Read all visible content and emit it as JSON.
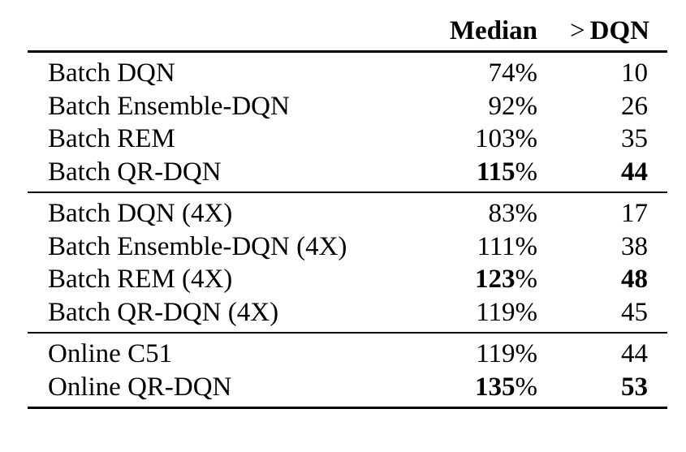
{
  "table": {
    "headers": {
      "method": "",
      "median": "Median",
      "dqn_symbol": ">",
      "dqn_label": "DQN"
    },
    "groups": [
      [
        {
          "method": "Batch DQN",
          "median_num": "74",
          "median_pct": "%",
          "dqn": "10",
          "bold": false
        },
        {
          "method": "Batch Ensemble-DQN",
          "median_num": "92",
          "median_pct": "%",
          "dqn": "26",
          "bold": false
        },
        {
          "method": "Batch REM",
          "median_num": "103",
          "median_pct": "%",
          "dqn": "35",
          "bold": false
        },
        {
          "method": "Batch QR-DQN",
          "median_num": "115",
          "median_pct": "%",
          "dqn": "44",
          "bold": true
        }
      ],
      [
        {
          "method": "Batch DQN (4X)",
          "median_num": "83",
          "median_pct": "%",
          "dqn": "17",
          "bold": false
        },
        {
          "method": "Batch Ensemble-DQN (4X)",
          "median_num": "111",
          "median_pct": "%",
          "dqn": "38",
          "bold": false
        },
        {
          "method": "Batch REM (4X)",
          "median_num": "123",
          "median_pct": "%",
          "dqn": "48",
          "bold": true
        },
        {
          "method": "Batch QR-DQN (4X)",
          "median_num": "119",
          "median_pct": "%",
          "dqn": "45",
          "bold": false
        }
      ],
      [
        {
          "method": "Online C51",
          "median_num": "119",
          "median_pct": "%",
          "dqn": "44",
          "bold": false
        },
        {
          "method": "Online QR-DQN",
          "median_num": "135",
          "median_pct": "%",
          "dqn": "53",
          "bold": true
        }
      ]
    ]
  }
}
